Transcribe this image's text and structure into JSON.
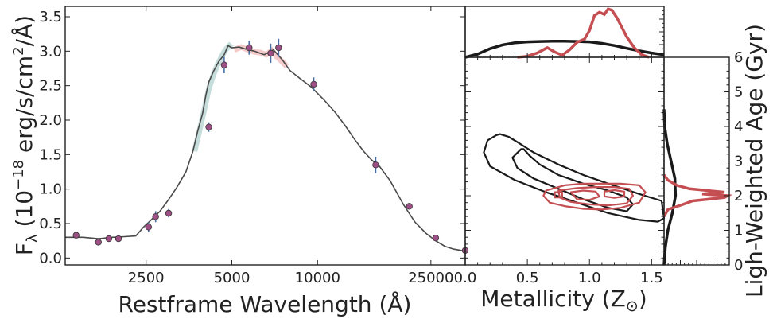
{
  "chart_data": [
    {
      "type": "line",
      "panel": "sed",
      "xlabel": "Restframe Wavelength (Å)",
      "ylabel_parts": [
        "F",
        "λ",
        " (10",
        "−18",
        " erg/s/cm",
        "2",
        "/Å)"
      ],
      "xscale": "log",
      "xlim": [
        1300,
        33000
      ],
      "ylim": [
        -0.1,
        3.65
      ],
      "xticks": [
        2500,
        5000,
        10000,
        25000
      ],
      "xtick_labels": [
        "2500",
        "5000",
        "10000",
        "25000"
      ],
      "yticks": [
        0.0,
        0.5,
        1.0,
        1.5,
        2.0,
        2.5,
        3.0,
        3.5
      ],
      "ytick_labels": [
        "0.0",
        "0.5",
        "1.0",
        "1.5",
        "2.0",
        "2.5",
        "3.0",
        "3.5"
      ],
      "colors": {
        "model": "#4a4a4a",
        "grism_blue": "#7fb3b0",
        "grism_red": "#e88a8a",
        "phot": "#9e4f86",
        "phot_err": "#4a6fa5"
      },
      "model_spectrum": {
        "x": [
          1300,
          1500,
          1700,
          1900,
          2100,
          2300,
          2450,
          2600,
          2800,
          3000,
          3200,
          3450,
          3650,
          3800,
          3950,
          4050,
          4150,
          4300,
          4500,
          4700,
          4850,
          5000,
          5300,
          5600,
          6000,
          6500,
          7000,
          7500,
          8000,
          8700,
          9500,
          10500,
          11500,
          12500,
          13500,
          14500,
          15500,
          16500,
          18000,
          20000,
          22000,
          24000,
          26000,
          28000,
          30000,
          33000
        ],
        "y": [
          0.3,
          0.3,
          0.28,
          0.3,
          0.31,
          0.32,
          0.45,
          0.55,
          0.68,
          0.85,
          1.02,
          1.25,
          1.55,
          1.85,
          2.1,
          2.35,
          2.55,
          2.7,
          2.85,
          2.95,
          3.08,
          3.05,
          3.06,
          3.03,
          3.0,
          2.95,
          3.02,
          2.88,
          2.72,
          2.6,
          2.48,
          2.3,
          2.12,
          1.92,
          1.72,
          1.55,
          1.42,
          1.33,
          1.12,
          0.78,
          0.52,
          0.36,
          0.25,
          0.17,
          0.13,
          0.1
        ]
      },
      "grism_blue": {
        "x": [
          3700,
          3850,
          4000,
          4150,
          4300,
          4450,
          4600,
          4750,
          4900,
          5000
        ],
        "y": [
          1.55,
          1.85,
          2.15,
          2.45,
          2.65,
          2.8,
          2.92,
          3.02,
          3.08,
          3.05
        ]
      },
      "grism_red": {
        "x": [
          5100,
          5400,
          5700,
          6000,
          6300,
          6600,
          6900,
          7200,
          7500,
          7800
        ],
        "y": [
          3.02,
          3.06,
          3.02,
          2.99,
          2.98,
          2.95,
          3.01,
          2.92,
          2.85,
          2.78
        ]
      },
      "photometry": {
        "x": [
          1420,
          1700,
          1850,
          2000,
          2550,
          2700,
          3000,
          4150,
          4700,
          5750,
          6850,
          7300,
          9700,
          16000,
          21000,
          26000,
          33000
        ],
        "y": [
          0.33,
          0.23,
          0.28,
          0.28,
          0.45,
          0.6,
          0.65,
          1.9,
          2.8,
          3.05,
          2.97,
          3.05,
          2.52,
          1.35,
          0.75,
          0.29,
          0.11
        ],
        "err": [
          0.03,
          0.04,
          0.03,
          0.03,
          0.07,
          0.08,
          0.06,
          0.07,
          0.12,
          0.1,
          0.14,
          0.13,
          0.1,
          0.12,
          0.04,
          0.02,
          0.02
        ]
      }
    },
    {
      "type": "line",
      "panel": "metallicity-marginal",
      "xlim": [
        0.0,
        1.6
      ],
      "series": [
        {
          "color": "#1a1a1a",
          "x": [
            0.0,
            0.1,
            0.2,
            0.3,
            0.4,
            0.5,
            0.6,
            0.7,
            0.8,
            0.9,
            1.0,
            1.1,
            1.2,
            1.3,
            1.4,
            1.5,
            1.6
          ],
          "y": [
            0.0,
            0.15,
            0.4,
            0.58,
            0.68,
            0.72,
            0.74,
            0.75,
            0.75,
            0.74,
            0.72,
            0.65,
            0.55,
            0.42,
            0.3,
            0.2,
            0.12
          ]
        },
        {
          "color": "#c44e52",
          "x": [
            0.42,
            0.5,
            0.58,
            0.66,
            0.72,
            0.78,
            0.84,
            0.9,
            0.96,
            1.0,
            1.04,
            1.08,
            1.12,
            1.15,
            1.18,
            1.22,
            1.26,
            1.3,
            1.36,
            1.42,
            1.48
          ],
          "y": [
            0.0,
            0.05,
            0.2,
            0.45,
            0.25,
            0.1,
            0.35,
            0.7,
            0.85,
            1.25,
            1.95,
            2.1,
            2.0,
            2.25,
            2.2,
            1.85,
            1.4,
            0.95,
            0.45,
            0.12,
            0.0
          ]
        }
      ]
    },
    {
      "type": "line",
      "panel": "contours",
      "xlabel": "Metallicity (Z",
      "xlabel_sub": "⊙",
      "xlabel_end": ")",
      "xlim": [
        0.0,
        1.6
      ],
      "ylim": [
        0,
        6
      ],
      "xticks": [
        0.0,
        0.5,
        1.0,
        1.5
      ],
      "xtick_labels": [
        "0.0",
        "0.5",
        "1.0",
        "1.5"
      ],
      "series": [
        {
          "color": "#1a1a1a",
          "x": [
            0.25,
            0.18,
            0.15,
            0.2,
            0.4,
            0.65,
            0.9,
            1.15,
            1.4,
            1.55,
            1.6,
            1.58,
            1.4,
            1.15,
            0.95,
            0.75,
            0.55,
            0.42,
            0.35,
            0.28,
            0.25
          ],
          "y": [
            3.75,
            3.6,
            3.25,
            2.85,
            2.45,
            2.1,
            1.8,
            1.5,
            1.3,
            1.25,
            1.35,
            1.85,
            2.05,
            2.35,
            2.6,
            2.9,
            3.25,
            3.55,
            3.7,
            3.78,
            3.75
          ]
        },
        {
          "color": "#1a1a1a",
          "x": [
            0.45,
            0.38,
            0.42,
            0.55,
            0.75,
            0.95,
            1.15,
            1.3,
            1.35,
            1.3,
            1.15,
            0.95,
            0.75,
            0.6,
            0.52,
            0.47,
            0.45
          ],
          "y": [
            3.35,
            3.1,
            2.8,
            2.5,
            2.2,
            1.9,
            1.65,
            1.55,
            1.75,
            1.95,
            2.15,
            2.35,
            2.6,
            2.9,
            3.15,
            3.35,
            3.35
          ]
        },
        {
          "color": "#c44e52",
          "x": [
            0.65,
            0.8,
            0.95,
            1.1,
            1.25,
            1.4,
            1.45,
            1.4,
            1.25,
            1.1,
            0.95,
            0.8,
            0.68,
            0.63,
            0.65
          ],
          "y": [
            2.15,
            2.3,
            2.35,
            2.35,
            2.35,
            2.3,
            2.1,
            1.8,
            1.65,
            1.6,
            1.62,
            1.7,
            1.8,
            2.0,
            2.15
          ]
        },
        {
          "color": "#c44e52",
          "x": [
            0.75,
            0.9,
            1.05,
            1.2,
            1.32,
            1.35,
            1.3,
            1.15,
            1.0,
            0.85,
            0.76,
            0.75
          ],
          "y": [
            2.15,
            2.22,
            2.25,
            2.25,
            2.2,
            2.0,
            1.78,
            1.72,
            1.75,
            1.82,
            1.95,
            2.15
          ]
        },
        {
          "color": "#c44e52",
          "x": [
            0.85,
            0.95,
            1.05,
            1.08,
            1.0,
            0.9,
            0.85
          ],
          "y": [
            2.1,
            2.15,
            2.12,
            1.98,
            1.88,
            1.9,
            2.1
          ]
        },
        {
          "color": "#c44e52",
          "x": [
            1.12,
            1.2,
            1.28,
            1.28,
            1.2,
            1.12,
            1.12
          ],
          "y": [
            2.12,
            2.16,
            2.12,
            1.98,
            1.94,
            1.98,
            2.12
          ]
        },
        {
          "color": "#c44e52",
          "x": [
            0.72,
            0.78,
            0.78,
            0.72,
            0.72
          ],
          "y": [
            2.1,
            2.1,
            1.95,
            1.95,
            2.1
          ]
        }
      ]
    },
    {
      "type": "line",
      "panel": "age-marginal",
      "ylabel": "Ligh-Weighted Age (Gyr)",
      "ylim": [
        0,
        6
      ],
      "yticks": [
        0,
        1,
        2,
        3,
        4,
        5,
        6
      ],
      "ytick_labels": [
        "0",
        "1",
        "2",
        "3",
        "4",
        "5",
        "6"
      ],
      "series": [
        {
          "color": "#1a1a1a",
          "y": [
            0.0,
            0.5,
            1.0,
            1.5,
            2.0,
            2.5,
            3.0,
            3.5,
            4.0,
            4.5
          ],
          "x": [
            0.0,
            0.02,
            0.06,
            0.13,
            0.18,
            0.17,
            0.11,
            0.05,
            0.01,
            0.0
          ]
        },
        {
          "color": "#c44e52",
          "y": [
            1.4,
            1.6,
            1.75,
            1.85,
            1.95,
            2.0,
            2.05,
            2.1,
            2.2,
            2.3,
            2.45,
            2.6
          ],
          "x": [
            0.0,
            0.06,
            0.3,
            0.45,
            0.95,
            1.0,
            0.6,
            0.95,
            0.4,
            0.2,
            0.06,
            0.0
          ]
        }
      ]
    }
  ]
}
